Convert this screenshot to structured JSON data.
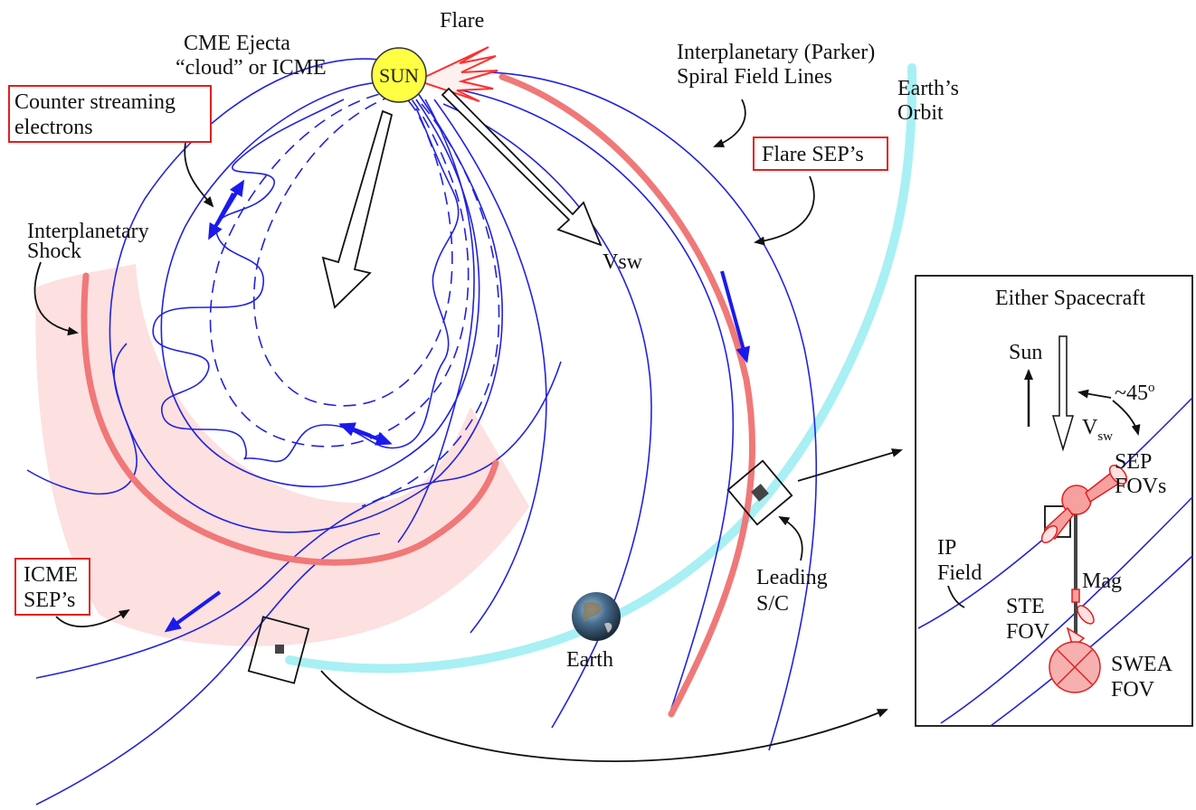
{
  "labels": {
    "flare": "Flare",
    "sun": "SUN",
    "cme_line1": "CME Ejecta",
    "cme_line2": "“cloud” or ICME",
    "counter_line1": "Counter streaming",
    "counter_line2": "electrons",
    "shock_line1": "Interplanetary",
    "shock_line2": "Shock",
    "vsw": "Vsw",
    "parker_line1": "Interplanetary (Parker)",
    "parker_line2": "Spiral Field Lines",
    "orbit_line1": "Earth’s",
    "orbit_line2": "Orbit",
    "flare_seps": "Flare SEP’s",
    "icme_line1": "ICME",
    "icme_line2": "SEP’s",
    "earth": "Earth",
    "leading_line1": "Leading",
    "leading_line2": "S/C"
  },
  "inset": {
    "title": "Either Spacecraft",
    "sun": "Sun",
    "angle": "~45",
    "angle_sup": "o",
    "vsw": "V",
    "vsw_sub": "sw",
    "sep_line1": "SEP",
    "sep_line2": "FOVs",
    "ip_line1": "IP",
    "ip_line2": "Field",
    "mag": "Mag",
    "ste_line1": "STE",
    "ste_line2": "FOV",
    "swea_line1": "SWEA",
    "swea_line2": "FOV"
  },
  "colors": {
    "field_line": "#2222dd",
    "sep_band": "#f07878",
    "shock_region": "#fde0e0",
    "orbit": "#a8f0f4",
    "sun": "#ffff44",
    "flare": "#ff3030",
    "box_border": "#e02020"
  }
}
